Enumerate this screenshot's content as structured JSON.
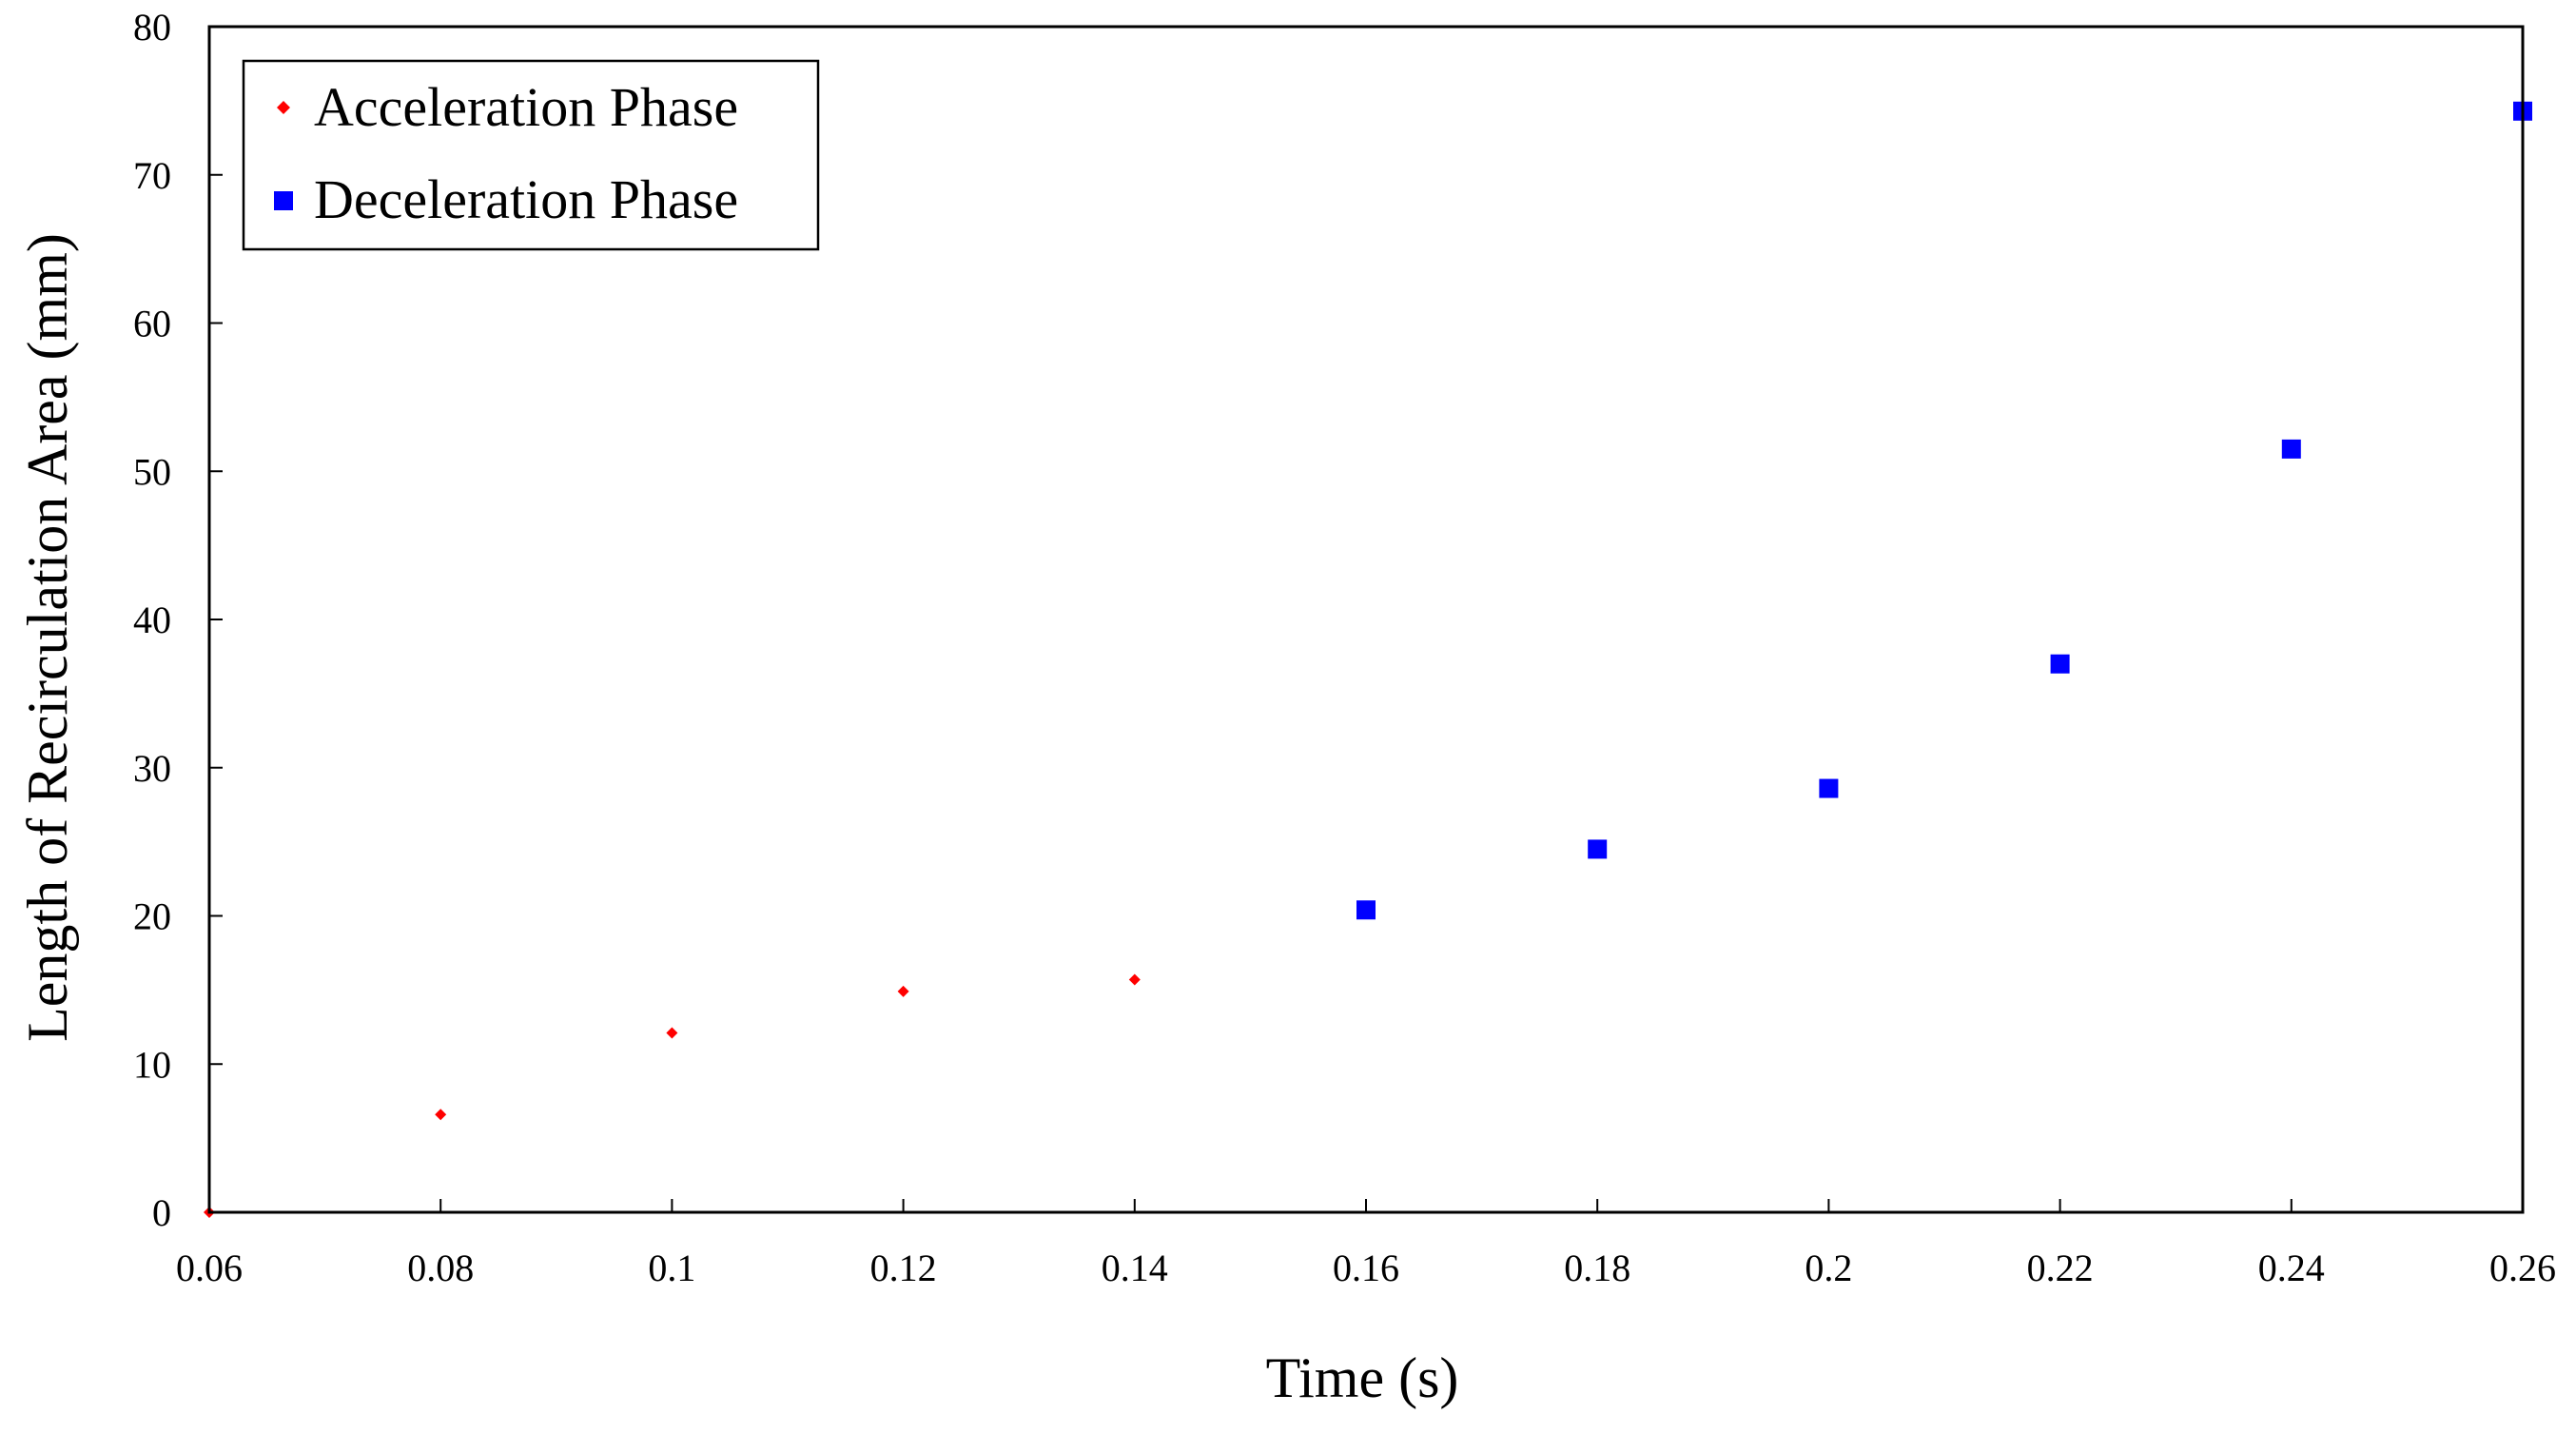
{
  "chart_data": {
    "type": "scatter",
    "title": "",
    "xlabel": "Time (s)",
    "ylabel": "Length of Recirculation Area (mm)",
    "xlim": [
      0.06,
      0.26
    ],
    "ylim": [
      0,
      80
    ],
    "xticks": [
      "0.06",
      "0.08",
      "0.1",
      "0.12",
      "0.14",
      "0.16",
      "0.18",
      "0.2",
      "0.22",
      "0.24",
      "0.26"
    ],
    "yticks": [
      "0",
      "10",
      "20",
      "30",
      "40",
      "50",
      "60",
      "70",
      "80"
    ],
    "grid": false,
    "legend_position": "top-left",
    "series": [
      {
        "name": "Acceleration Phase",
        "marker": "diamond",
        "color": "#ff0000",
        "x": [
          0.06,
          0.08,
          0.1,
          0.12,
          0.14
        ],
        "y": [
          0,
          6.6,
          12.1,
          14.9,
          15.7
        ]
      },
      {
        "name": "Deceleration Phase",
        "marker": "square",
        "color": "#0000ff",
        "x": [
          0.16,
          0.18,
          0.2,
          0.22,
          0.24,
          0.26
        ],
        "y": [
          20.4,
          24.5,
          28.6,
          37.0,
          51.5,
          74.3
        ]
      }
    ]
  }
}
